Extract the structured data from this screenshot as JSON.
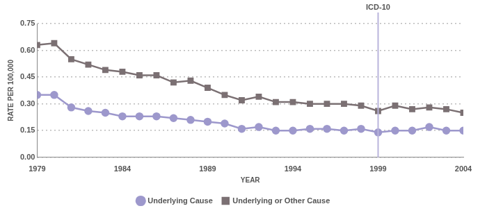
{
  "chart_data": {
    "type": "line",
    "x": [
      1979,
      1980,
      1981,
      1982,
      1983,
      1984,
      1985,
      1986,
      1987,
      1988,
      1989,
      1990,
      1991,
      1992,
      1993,
      1994,
      1995,
      1996,
      1997,
      1998,
      1999,
      2000,
      2001,
      2002,
      2003,
      2004
    ],
    "series": [
      {
        "name": "Underlying Cause",
        "color": "#9d98cc",
        "marker": "circle",
        "line_style": "solid",
        "values": [
          0.35,
          0.35,
          0.28,
          0.26,
          0.25,
          0.23,
          0.23,
          0.23,
          0.22,
          0.21,
          0.2,
          0.19,
          0.16,
          0.17,
          0.15,
          0.15,
          0.16,
          0.16,
          0.15,
          0.16,
          0.14,
          0.15,
          0.15,
          0.17,
          0.15,
          0.15
        ]
      },
      {
        "name": "Underlying or Other Cause",
        "color": "#7b7073",
        "marker": "square",
        "line_style": "solid",
        "values": [
          0.63,
          0.64,
          0.55,
          0.52,
          0.49,
          0.48,
          0.46,
          0.46,
          0.42,
          0.43,
          0.39,
          0.35,
          0.32,
          0.34,
          0.31,
          0.31,
          0.3,
          0.3,
          0.3,
          0.29,
          0.26,
          0.29,
          0.27,
          0.28,
          0.27,
          0.25
        ]
      }
    ],
    "x_label": "YEAR",
    "y_label": "RATE PER 100,000",
    "xlim": [
      1979,
      2004
    ],
    "xticks": [
      1979,
      1984,
      1989,
      1994,
      1999,
      2004
    ],
    "ylim": [
      0,
      0.75
    ],
    "yticks": [
      {
        "value": 0,
        "label": "0.00"
      },
      {
        "value": 0.15,
        "label": "0.15"
      },
      {
        "value": 0.3,
        "label": "0.30"
      },
      {
        "value": 0.45,
        "label": "0.45"
      },
      {
        "value": 0.6,
        "label": "0.60"
      },
      {
        "value": 0.75,
        "label": "0.75"
      }
    ],
    "annotations": [
      {
        "x": 1999,
        "label": "ICD-10"
      }
    ],
    "grid": true,
    "legend": "bottom"
  }
}
